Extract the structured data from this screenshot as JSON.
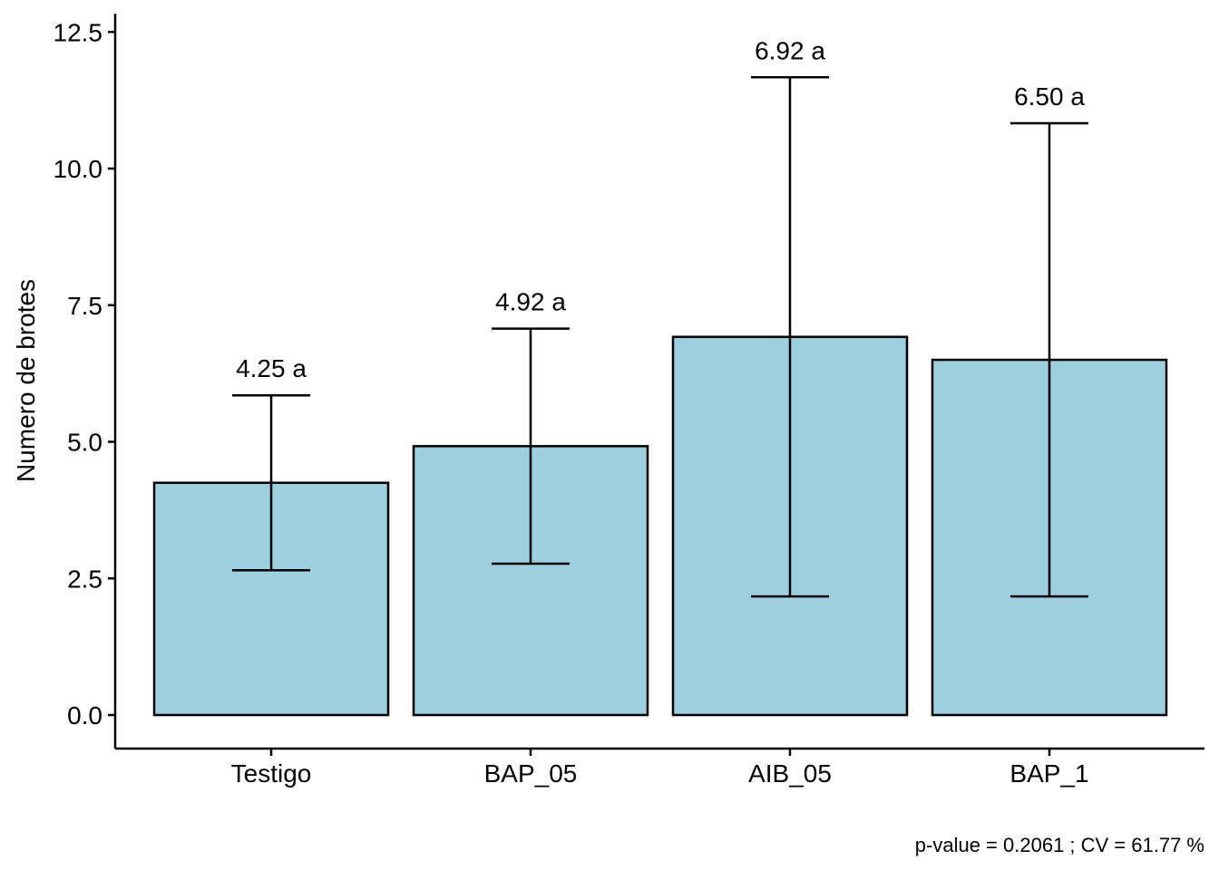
{
  "chart_data": {
    "type": "bar",
    "categories": [
      "Testigo",
      "BAP_05",
      "AIB_05",
      "BAP_1"
    ],
    "values": [
      4.25,
      4.92,
      6.92,
      6.5
    ],
    "error_bars": [
      {
        "low": 2.65,
        "high": 5.85
      },
      {
        "low": 2.77,
        "high": 7.07
      },
      {
        "low": 2.17,
        "high": 11.67
      },
      {
        "low": 2.17,
        "high": 10.83
      }
    ],
    "bar_labels": [
      "4.25 a",
      "4.92 a",
      "6.92 a",
      "6.50 a"
    ],
    "title": "",
    "xlabel": "",
    "ylabel": "Numero de brotes",
    "ylim": [
      -0.6,
      12.85
    ],
    "yticks": [
      0.0,
      2.5,
      5.0,
      7.5,
      10.0,
      12.5
    ],
    "ytick_labels": [
      "0.0",
      "2.5",
      "5.0",
      "7.5",
      "10.0",
      "12.5"
    ],
    "grid": false,
    "legend": "none",
    "bar_color": "#9ECFDF",
    "caption": "p-value = 0.2061 ; CV =  61.77 %"
  }
}
